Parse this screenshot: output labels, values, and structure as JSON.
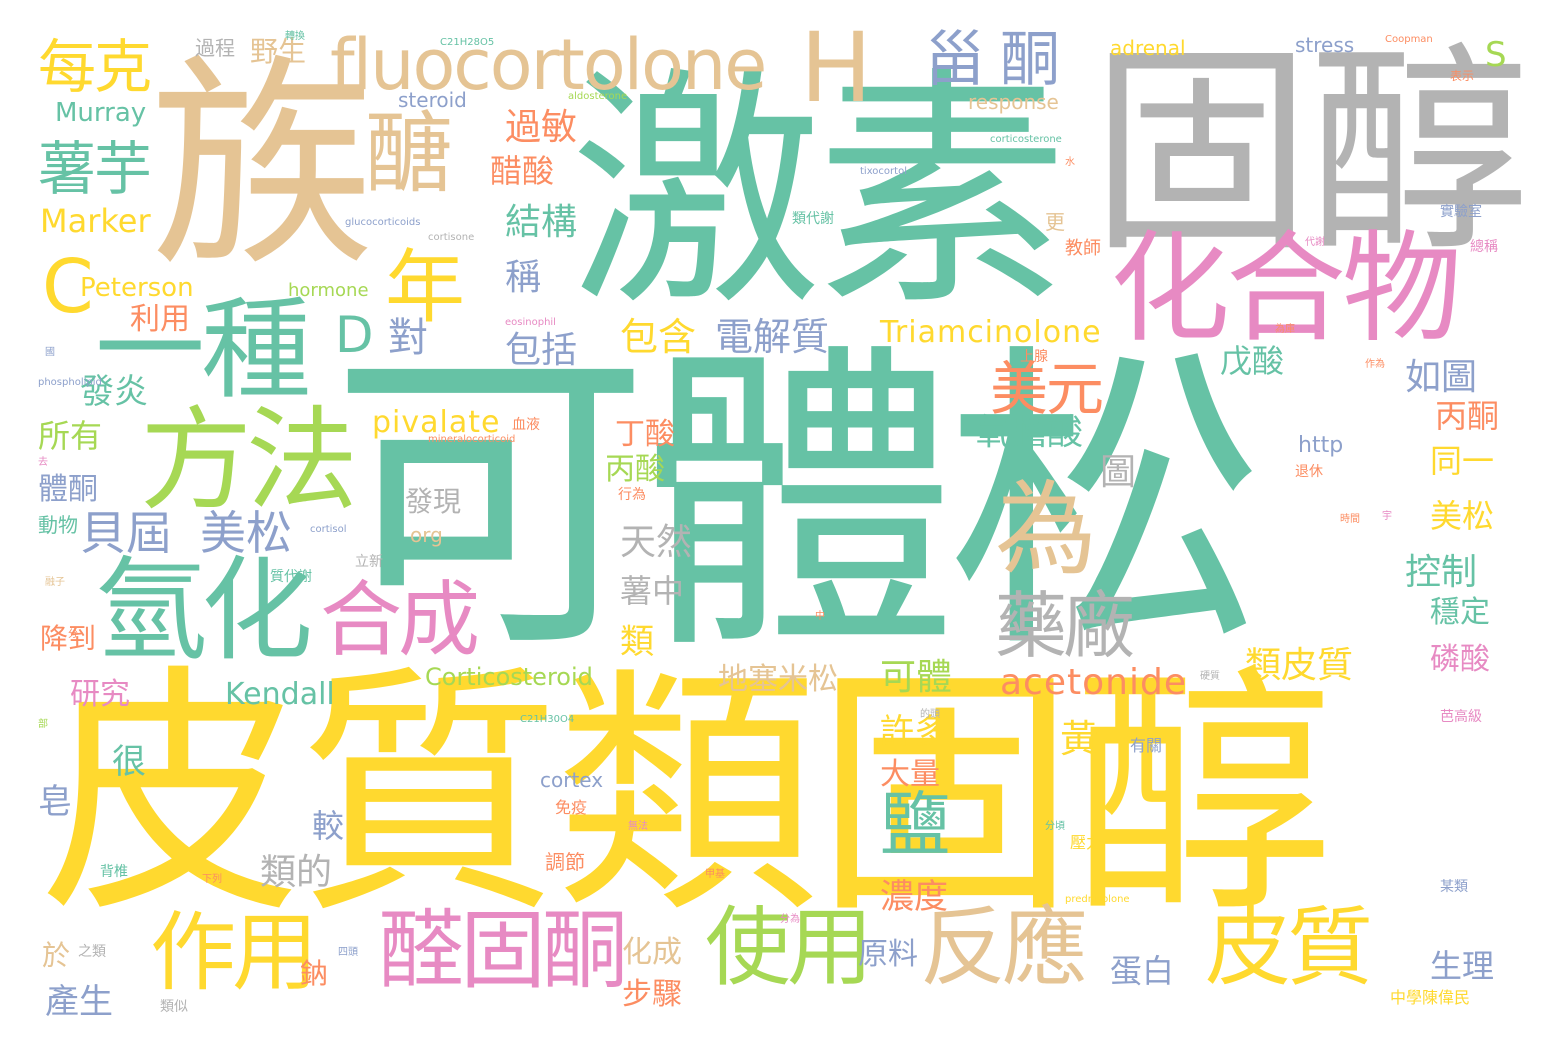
{
  "colors": {
    "green": "#66c2a5",
    "yellow": "#ffd92f",
    "tan": "#e5c494",
    "gray": "#b3b3b3",
    "pink": "#e78ac3",
    "lime": "#a6d854",
    "blue": "#8da0cb",
    "orange": "#fc8d62"
  },
  "words": [
    "可體松",
    "皮質類固醇",
    "激素",
    "固醇",
    "族",
    "化合物",
    "一種",
    "方法",
    "氫化",
    "合成",
    "醛固酮",
    "作用",
    "使用",
    "反應",
    "皮質",
    "藥廠",
    "為",
    "醣",
    "fluocortolone",
    "H",
    "C",
    "D",
    "年",
    "美元",
    "甾",
    "酮",
    "每克",
    "薯芋",
    "貝屆",
    "美松",
    "鹽",
    "Triamcinolone",
    "acetonide",
    "pivalate",
    "電解質",
    "包含",
    "包括",
    "醋酸",
    "過敏",
    "結構",
    "稱",
    "對",
    "利用",
    "Peterson",
    "Marker",
    "Kendall",
    "Corticosteroid",
    "發炎",
    "所有",
    "體酮",
    "丙酸",
    "丁酸",
    "天然",
    "薯中",
    "類",
    "氧膽酸",
    "圖",
    "戊酸",
    "如圖",
    "丙酮",
    "同一",
    "美松",
    "控制",
    "穩定",
    "磷酸",
    "類皮質",
    "地塞米松",
    "可體",
    "許多",
    "大量",
    "黃",
    "很",
    "皂",
    "較",
    "類的",
    "濃度",
    "原料",
    "鈉",
    "步驟",
    "化成",
    "蛋白",
    "生理",
    "產生",
    "於",
    "研究",
    "降到",
    "動物",
    "野生",
    "每克",
    "過程",
    "Murray",
    "steroid",
    "response",
    "adrenal",
    "stress",
    "S",
    "發現",
    "org",
    "http",
    "hormone",
    "cortex",
    "免疫",
    "調節",
    "壓力",
    "有關",
    "更",
    "教師",
    "上腺",
    "立新",
    "退休",
    "中學陳偉民",
    "某類",
    "芭高級",
    "總稱",
    "實驗室",
    "表示",
    "Coopman",
    "C21H28O5",
    "C21H30O4",
    "aldosterone",
    "corticosterone",
    "tixocortol",
    "cortisone",
    "cortisol",
    "glucocorticoids",
    "eosinophil",
    "phospholipid",
    "mineralocorticoid",
    "prednisolone",
    "血液",
    "行為",
    "之類",
    "背椎",
    "分為",
    "類似",
    "質代謝",
    "類代謝",
    "時間",
    "硬質",
    "分頃",
    "轉換",
    "的頭",
    "會",
    "宇",
    "中",
    "分",
    "部",
    "去",
    "融子",
    "代謝",
    "為庫",
    "國",
    "下列",
    "四頭",
    "作為",
    "甲基",
    "水",
    "無法"
  ]
}
